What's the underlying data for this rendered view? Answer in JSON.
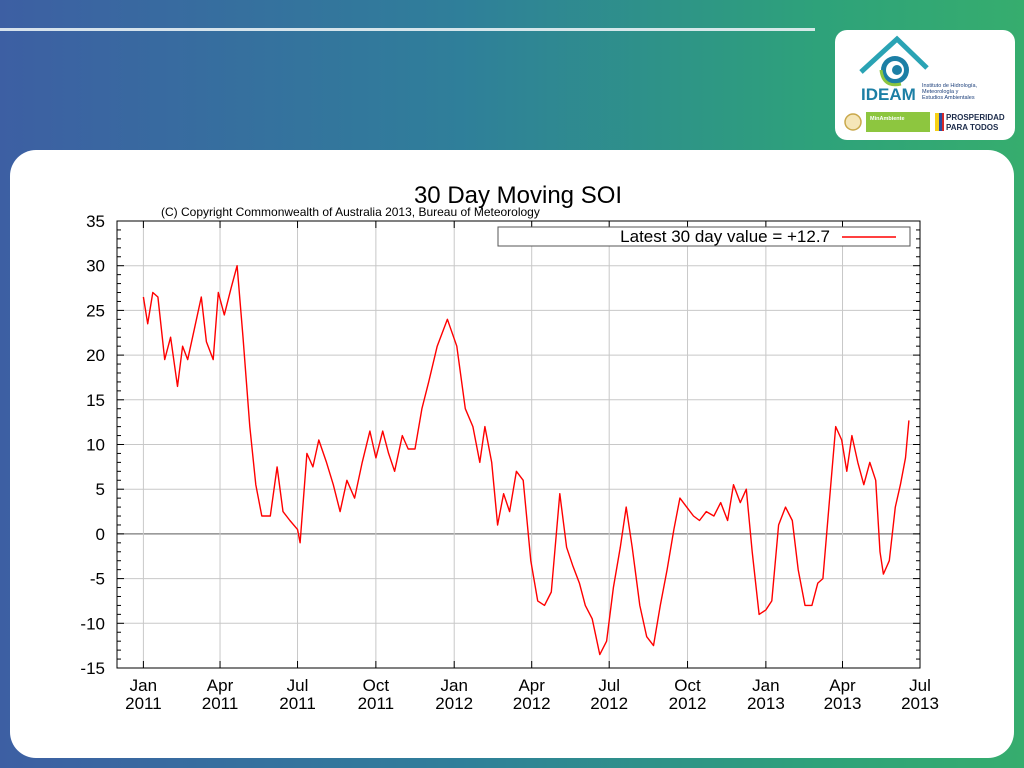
{
  "logo": {
    "brand": "IDEAM",
    "institute_lines": [
      "Instituto de Hidrología,",
      "Meteorología y",
      "Estudios Ambientales"
    ],
    "partner_left": "MinAmbiente",
    "partner_right_lines": [
      "PROSPERIDAD",
      "PARA TODOS"
    ]
  },
  "colors": {
    "series_line": "#ff0000",
    "logo_teal": "#2aa3b4",
    "logo_navy": "#1c3f7a",
    "logo_green": "#8dc63f"
  },
  "chart_data": {
    "type": "line",
    "title": "30 Day Moving SOI",
    "subtitle": "(C) Copyright Commonwealth of Australia 2013, Bureau of Meteorology",
    "xlabel": "",
    "ylabel": "",
    "xlim": [
      "2010-12-01",
      "2013-07-01"
    ],
    "ylim": [
      -15,
      35
    ],
    "grid": true,
    "legend_position": "top-right",
    "x_ticks": [
      {
        "date": "2011-01-01",
        "line1": "Jan",
        "line2": "2011"
      },
      {
        "date": "2011-04-01",
        "line1": "Apr",
        "line2": "2011"
      },
      {
        "date": "2011-07-01",
        "line1": "Jul",
        "line2": "2011"
      },
      {
        "date": "2011-10-01",
        "line1": "Oct",
        "line2": "2011"
      },
      {
        "date": "2012-01-01",
        "line1": "Jan",
        "line2": "2012"
      },
      {
        "date": "2012-04-01",
        "line1": "Apr",
        "line2": "2012"
      },
      {
        "date": "2012-07-01",
        "line1": "Jul",
        "line2": "2012"
      },
      {
        "date": "2012-10-01",
        "line1": "Oct",
        "line2": "2012"
      },
      {
        "date": "2013-01-01",
        "line1": "Jan",
        "line2": "2013"
      },
      {
        "date": "2013-04-01",
        "line1": "Apr",
        "line2": "2013"
      },
      {
        "date": "2013-07-01",
        "line1": "Jul",
        "line2": "2013"
      }
    ],
    "y_ticks": [
      -15,
      -10,
      -5,
      0,
      5,
      10,
      15,
      20,
      25,
      30,
      35
    ],
    "series": [
      {
        "name": "Latest 30 day value = +12.7",
        "points": [
          [
            "2011-01-01",
            26.5
          ],
          [
            "2011-01-06",
            23.5
          ],
          [
            "2011-01-12",
            27.0
          ],
          [
            "2011-01-18",
            26.5
          ],
          [
            "2011-01-26",
            19.5
          ],
          [
            "2011-02-02",
            22.0
          ],
          [
            "2011-02-10",
            16.5
          ],
          [
            "2011-02-16",
            21.0
          ],
          [
            "2011-02-22",
            19.5
          ],
          [
            "2011-03-02",
            23.0
          ],
          [
            "2011-03-10",
            26.5
          ],
          [
            "2011-03-16",
            21.5
          ],
          [
            "2011-03-24",
            19.5
          ],
          [
            "2011-03-30",
            27.0
          ],
          [
            "2011-04-06",
            24.5
          ],
          [
            "2011-04-14",
            27.5
          ],
          [
            "2011-04-21",
            30.0
          ],
          [
            "2011-04-28",
            22.0
          ],
          [
            "2011-05-06",
            12.0
          ],
          [
            "2011-05-13",
            5.5
          ],
          [
            "2011-05-20",
            2.0
          ],
          [
            "2011-05-30",
            2.0
          ],
          [
            "2011-06-07",
            7.5
          ],
          [
            "2011-06-14",
            2.5
          ],
          [
            "2011-06-22",
            1.5
          ],
          [
            "2011-07-01",
            0.5
          ],
          [
            "2011-07-04",
            -1.0
          ],
          [
            "2011-07-12",
            9.0
          ],
          [
            "2011-07-19",
            7.5
          ],
          [
            "2011-07-26",
            10.5
          ],
          [
            "2011-08-04",
            8.0
          ],
          [
            "2011-08-12",
            5.5
          ],
          [
            "2011-08-20",
            2.5
          ],
          [
            "2011-08-28",
            6.0
          ],
          [
            "2011-09-06",
            4.0
          ],
          [
            "2011-09-15",
            8.0
          ],
          [
            "2011-09-24",
            11.5
          ],
          [
            "2011-10-01",
            8.5
          ],
          [
            "2011-10-09",
            11.5
          ],
          [
            "2011-10-16",
            9.0
          ],
          [
            "2011-10-23",
            7.0
          ],
          [
            "2011-11-01",
            11.0
          ],
          [
            "2011-11-08",
            9.5
          ],
          [
            "2011-11-16",
            9.5
          ],
          [
            "2011-11-24",
            14.0
          ],
          [
            "2011-12-02",
            17.0
          ],
          [
            "2011-12-12",
            21.0
          ],
          [
            "2011-12-24",
            24.0
          ],
          [
            "2012-01-04",
            21.0
          ],
          [
            "2012-01-14",
            14.0
          ],
          [
            "2012-01-23",
            12.0
          ],
          [
            "2012-01-31",
            8.0
          ],
          [
            "2012-02-06",
            12.0
          ],
          [
            "2012-02-14",
            8.0
          ],
          [
            "2012-02-21",
            1.0
          ],
          [
            "2012-02-28",
            4.5
          ],
          [
            "2012-03-06",
            2.5
          ],
          [
            "2012-03-14",
            7.0
          ],
          [
            "2012-03-22",
            6.0
          ],
          [
            "2012-03-31",
            -3.0
          ],
          [
            "2012-04-08",
            -7.5
          ],
          [
            "2012-04-16",
            -8.0
          ],
          [
            "2012-04-24",
            -6.5
          ],
          [
            "2012-05-04",
            4.5
          ],
          [
            "2012-05-12",
            -1.5
          ],
          [
            "2012-05-19",
            -3.5
          ],
          [
            "2012-05-27",
            -5.5
          ],
          [
            "2012-06-03",
            -8.0
          ],
          [
            "2012-06-11",
            -9.5
          ],
          [
            "2012-06-20",
            -13.5
          ],
          [
            "2012-06-28",
            -12.0
          ],
          [
            "2012-07-06",
            -6.0
          ],
          [
            "2012-07-14",
            -1.5
          ],
          [
            "2012-07-21",
            3.0
          ],
          [
            "2012-07-28",
            -1.5
          ],
          [
            "2012-08-06",
            -8.0
          ],
          [
            "2012-08-14",
            -11.5
          ],
          [
            "2012-08-22",
            -12.5
          ],
          [
            "2012-08-30",
            -8.0
          ],
          [
            "2012-09-07",
            -4.0
          ],
          [
            "2012-09-15",
            0.5
          ],
          [
            "2012-09-22",
            4.0
          ],
          [
            "2012-09-30",
            3.0
          ],
          [
            "2012-10-08",
            2.0
          ],
          [
            "2012-10-15",
            1.5
          ],
          [
            "2012-10-23",
            2.5
          ],
          [
            "2012-11-01",
            2.0
          ],
          [
            "2012-11-09",
            3.5
          ],
          [
            "2012-11-17",
            1.5
          ],
          [
            "2012-11-24",
            5.5
          ],
          [
            "2012-12-02",
            3.5
          ],
          [
            "2012-12-09",
            5.0
          ],
          [
            "2012-12-16",
            -2.0
          ],
          [
            "2012-12-24",
            -9.0
          ],
          [
            "2013-01-01",
            -8.5
          ],
          [
            "2013-01-08",
            -7.5
          ],
          [
            "2013-01-16",
            1.0
          ],
          [
            "2013-01-24",
            3.0
          ],
          [
            "2013-02-01",
            1.5
          ],
          [
            "2013-02-08",
            -4.0
          ],
          [
            "2013-02-16",
            -8.0
          ],
          [
            "2013-02-24",
            -8.0
          ],
          [
            "2013-03-03",
            -5.5
          ],
          [
            "2013-03-09",
            -5.0
          ],
          [
            "2013-03-16",
            3.0
          ],
          [
            "2013-03-24",
            12.0
          ],
          [
            "2013-03-31",
            10.5
          ],
          [
            "2013-04-06",
            7.0
          ],
          [
            "2013-04-12",
            11.0
          ],
          [
            "2013-04-19",
            8.0
          ],
          [
            "2013-04-26",
            5.5
          ],
          [
            "2013-05-03",
            8.0
          ],
          [
            "2013-05-10",
            6.0
          ],
          [
            "2013-05-15",
            -2.0
          ],
          [
            "2013-05-19",
            -4.5
          ],
          [
            "2013-05-26",
            -3.0
          ],
          [
            "2013-06-02",
            3.0
          ],
          [
            "2013-06-08",
            5.5
          ],
          [
            "2013-06-14",
            8.5
          ],
          [
            "2013-06-18",
            12.7
          ]
        ]
      }
    ]
  }
}
